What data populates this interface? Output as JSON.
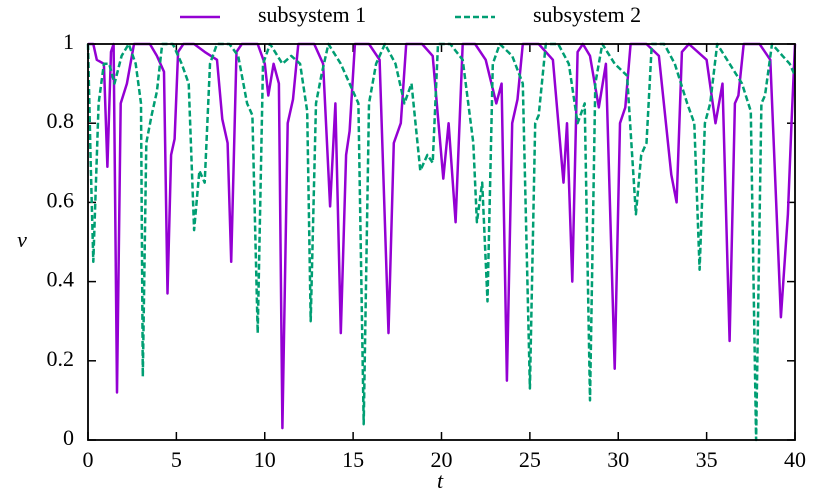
{
  "chart_data": {
    "type": "line",
    "x_label": "t",
    "y_label": "ν",
    "xlim": [
      0,
      40
    ],
    "xticks": [
      0,
      5,
      10,
      15,
      20,
      25,
      30,
      35,
      40
    ],
    "ylim": [
      0,
      1
    ],
    "yticks": [
      0,
      0.2,
      0.4,
      0.6,
      0.8,
      1
    ],
    "legend": "top",
    "series": [
      {
        "name": "subsystem 1",
        "color": "#9400d3",
        "line_style": "solid",
        "x": [
          0,
          0.3,
          0.5,
          0.9,
          1.1,
          1.3,
          1.45,
          1.64,
          1.85,
          2.2,
          2.6,
          3.5,
          3.9,
          4.3,
          4.5,
          4.7,
          4.9,
          5.1,
          5.4,
          6.0,
          6.6,
          7.3,
          7.6,
          7.9,
          8.1,
          8.4,
          8.7,
          9.6,
          10.0,
          10.2,
          10.5,
          10.8,
          11.0,
          11.3,
          11.6,
          11.9,
          12.8,
          13.3,
          13.7,
          14.0,
          14.3,
          14.6,
          14.8,
          15.1,
          15.9,
          16.5,
          17.0,
          17.3,
          17.7,
          18.0,
          18.9,
          19.5,
          20.1,
          20.4,
          20.8,
          21.2,
          21.9,
          22.5,
          23.1,
          23.4,
          23.7,
          24.0,
          24.3,
          24.6,
          25.5,
          26.3,
          26.9,
          27.1,
          27.4,
          27.7,
          28.0,
          28.4,
          28.9,
          29.3,
          29.8,
          30.1,
          30.4,
          30.7,
          31.6,
          32.3,
          33.0,
          33.3,
          33.6,
          34.0,
          35.0,
          35.5,
          35.9,
          36.3,
          36.6,
          36.8,
          37.1,
          38.0,
          38.6,
          39.2,
          39.6,
          39.8,
          40
        ],
        "values": [
          1,
          1,
          0.96,
          0.95,
          0.69,
          0.98,
          1,
          0.12,
          0.85,
          0.9,
          1,
          1,
          0.97,
          0.93,
          0.37,
          0.72,
          0.76,
          0.98,
          1,
          1,
          0.98,
          0.96,
          0.81,
          0.75,
          0.45,
          0.98,
          1,
          1,
          0.95,
          0.87,
          0.95,
          0.9,
          0.03,
          0.8,
          0.86,
          1,
          1,
          0.95,
          0.59,
          0.85,
          0.27,
          0.72,
          0.78,
          1,
          1,
          0.96,
          0.27,
          0.75,
          0.8,
          1,
          1,
          0.97,
          0.66,
          0.8,
          0.55,
          1,
          1,
          0.96,
          0.85,
          0.9,
          0.15,
          0.8,
          0.86,
          1,
          1,
          0.96,
          0.65,
          0.8,
          0.4,
          0.98,
          1,
          0.97,
          0.84,
          0.95,
          0.18,
          0.8,
          0.84,
          1,
          1,
          0.97,
          0.67,
          0.6,
          0.98,
          1,
          0.96,
          0.8,
          0.9,
          0.25,
          0.85,
          0.87,
          1,
          1,
          0.96,
          0.31,
          0.57,
          0.8,
          1
        ]
      },
      {
        "name": "subsystem 2",
        "color": "#009e73",
        "line_style": "dashed",
        "x": [
          0,
          0.15,
          0.3,
          0.6,
          0.9,
          1.2,
          1.5,
          1.9,
          2.3,
          2.7,
          3.0,
          3.1,
          3.3,
          3.6,
          3.9,
          4.2,
          4.8,
          5.3,
          5.7,
          6.0,
          6.3,
          6.6,
          6.9,
          7.3,
          8.0,
          8.5,
          9.0,
          9.3,
          9.6,
          9.9,
          10.3,
          11.0,
          11.5,
          12.0,
          12.4,
          12.6,
          12.9,
          13.2,
          13.6,
          14.3,
          15.0,
          15.3,
          15.6,
          15.9,
          16.3,
          16.8,
          17.4,
          17.9,
          18.3,
          18.8,
          19.2,
          19.5,
          19.8,
          20.5,
          21.2,
          21.8,
          22.0,
          22.3,
          22.6,
          22.9,
          23.3,
          24.0,
          24.6,
          25.0,
          25.3,
          25.5,
          25.9,
          26.6,
          27.2,
          27.7,
          28.1,
          28.4,
          28.7,
          29.1,
          29.8,
          30.5,
          31.0,
          31.3,
          31.6,
          31.9,
          32.6,
          33.2,
          33.9,
          34.3,
          34.6,
          34.9,
          35.2,
          35.6,
          36.3,
          37.0,
          37.5,
          37.8,
          38.1,
          38.3,
          38.7,
          39.3,
          39.7,
          40
        ],
        "values": [
          1,
          0.7,
          0.45,
          0.85,
          0.95,
          0.95,
          0.9,
          0.97,
          1,
          0.95,
          0.85,
          0.16,
          0.75,
          0.82,
          0.88,
          1,
          1,
          0.95,
          0.9,
          0.53,
          0.68,
          0.65,
          0.95,
          1,
          1,
          0.97,
          0.85,
          0.82,
          0.27,
          0.95,
          1,
          0.95,
          0.97,
          0.95,
          0.83,
          0.3,
          0.85,
          0.92,
          1,
          0.95,
          0.88,
          0.85,
          0.04,
          0.85,
          0.95,
          1,
          0.95,
          0.85,
          0.9,
          0.68,
          0.72,
          0.7,
          1,
          1,
          0.96,
          0.75,
          0.55,
          0.65,
          0.35,
          0.95,
          1,
          0.97,
          0.9,
          0.13,
          0.8,
          0.82,
          1,
          1,
          0.95,
          0.8,
          0.85,
          0.1,
          0.9,
          1,
          0.95,
          0.92,
          0.57,
          0.72,
          0.75,
          1,
          1,
          0.95,
          0.85,
          0.8,
          0.43,
          0.8,
          0.85,
          1,
          0.95,
          0.9,
          0.83,
          0,
          0.85,
          0.87,
          1,
          0.97,
          0.95,
          0.92
        ]
      }
    ]
  }
}
